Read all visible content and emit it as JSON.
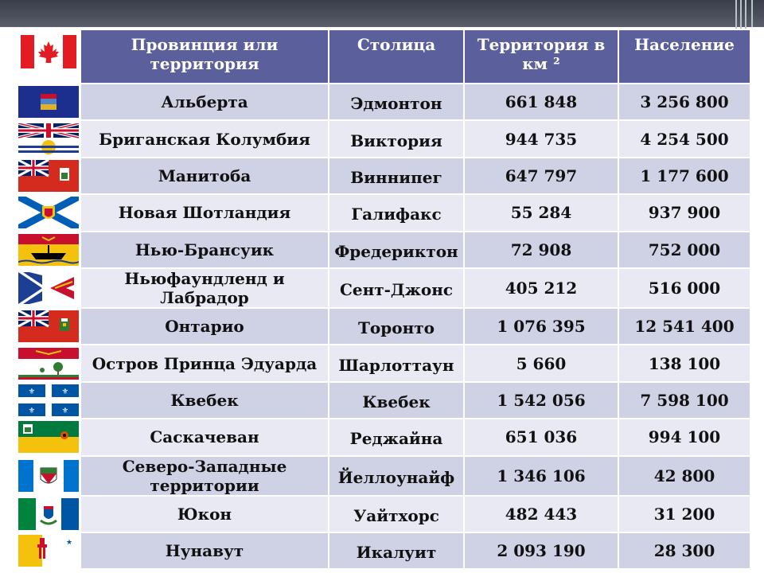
{
  "header": {
    "province": "Провинция или территория",
    "capital": "Столица",
    "area": "Территория в км ²",
    "population": "Население"
  },
  "rows": [
    {
      "flag": "alberta-flag",
      "name": "Альберта",
      "capital": "Эдмонтон",
      "area": "661 848",
      "population": "3 256 800"
    },
    {
      "flag": "british-columbia-flag",
      "name": "Бриганская Колумбия",
      "capital": "Виктория",
      "area": "944 735",
      "population": "4 254 500"
    },
    {
      "flag": "manitoba-flag",
      "name": "Манитоба",
      "capital": "Виннипег",
      "area": "647 797",
      "population": "1 177 600"
    },
    {
      "flag": "nova-scotia-flag",
      "name": "Новая Шотландия",
      "capital": "Галифакс",
      "area": "55 284",
      "population": "937 900"
    },
    {
      "flag": "new-brunswick-flag",
      "name": "Нью-Брансуик",
      "capital": "Фредериктон",
      "area": "72 908",
      "population": "752 000"
    },
    {
      "flag": "newfoundland-flag",
      "name": "Ньюфаундленд и Лабрадор",
      "capital": "Сент-Джонс",
      "area": "405 212",
      "population": "516 000"
    },
    {
      "flag": "ontario-flag",
      "name": "Онтарио",
      "capital": "Торонто",
      "area": "1 076 395",
      "population": "12 541 400"
    },
    {
      "flag": "pei-flag",
      "name": "Остров Принца Эдуарда",
      "capital": "Шарлоттаун",
      "area": "5 660",
      "population": "138 100"
    },
    {
      "flag": "quebec-flag",
      "name": "Квебек",
      "capital": "Квебек",
      "area": "1 542 056",
      "population": "7 598 100"
    },
    {
      "flag": "saskatchewan-flag",
      "name": "Саскачеван",
      "capital": "Реджайна",
      "area": "651 036",
      "population": "994 100"
    },
    {
      "flag": "northwest-territories-flag",
      "name": "Северо-Западные территории",
      "capital": "Йеллоунайф",
      "area": "1 346 106",
      "population": "42 800"
    },
    {
      "flag": "yukon-flag",
      "name": "Юкон",
      "capital": "Уайтхорс",
      "area": "482 443",
      "population": "31 200"
    },
    {
      "flag": "nunavut-flag",
      "name": "Нунавут",
      "capital": "Икалуит",
      "area": "2 093 190",
      "population": "28 300"
    }
  ],
  "colors": {
    "header_bg": "#5b5f9b",
    "row_odd": "#cfd1e4",
    "row_even": "#e8e9f3",
    "top_bar": "#4b505c"
  }
}
